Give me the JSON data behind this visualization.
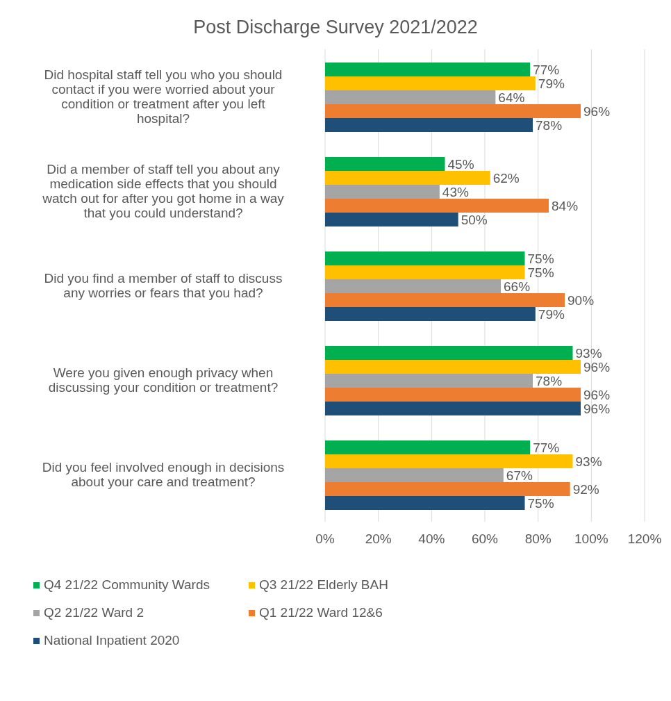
{
  "chart_data": {
    "type": "bar",
    "orientation": "horizontal",
    "title": "Post Discharge Survey 2021/2022",
    "categories": [
      "Did hospital staff tell you who you should contact if you were worried about your condition or treatment after you left hospital?",
      "Did a member of staff tell you about any medication side effects that you should watch out for after you got home in a way that you could understand?",
      "Did you find a member of staff to discuss any worries or fears that you had?",
      "Were you given enough privacy when discussing your condition or treatment?",
      "Did you feel involved enough in decisions about your care and treatment?"
    ],
    "series": [
      {
        "name": "Q4 21/22 Community Wards",
        "color": "#00b050",
        "values": [
          77,
          45,
          75,
          93,
          77
        ],
        "value_labels": [
          "77%",
          "45%",
          "75%",
          "93%",
          "77%"
        ]
      },
      {
        "name": "Q3 21/22 Elderly BAH",
        "color": "#ffc000",
        "values": [
          79,
          62,
          75,
          96,
          93
        ],
        "value_labels": [
          "79%",
          "62%",
          "75%",
          "96%",
          "93%"
        ]
      },
      {
        "name": "Q2 21/22 Ward 2",
        "color": "#a5a5a5",
        "values": [
          64,
          43,
          66,
          78,
          67
        ],
        "value_labels": [
          "64%",
          "43%",
          "66%",
          "78%",
          "67%"
        ]
      },
      {
        "name": "Q1 21/22 Ward 12&6",
        "color": "#ed7d31",
        "values": [
          96,
          84,
          90,
          96,
          92
        ],
        "value_labels": [
          "96%",
          "84%",
          "90%",
          "96%",
          "92%"
        ]
      },
      {
        "name": "National Inpatient 2020",
        "color": "#1f4e79",
        "values": [
          78,
          50,
          79,
          96,
          75
        ],
        "value_labels": [
          "78%",
          "50%",
          "79%",
          "96%",
          "75%"
        ]
      }
    ],
    "xlim": [
      0,
      120
    ],
    "xticks": [
      {
        "value": 0,
        "label": "0%"
      },
      {
        "value": 20,
        "label": "20%"
      },
      {
        "value": 40,
        "label": "40%"
      },
      {
        "value": 60,
        "label": "60%"
      },
      {
        "value": 80,
        "label": "80%"
      },
      {
        "value": 100,
        "label": "100%"
      },
      {
        "value": 120,
        "label": "120%"
      }
    ],
    "grid": "x",
    "legend": "bottom"
  }
}
